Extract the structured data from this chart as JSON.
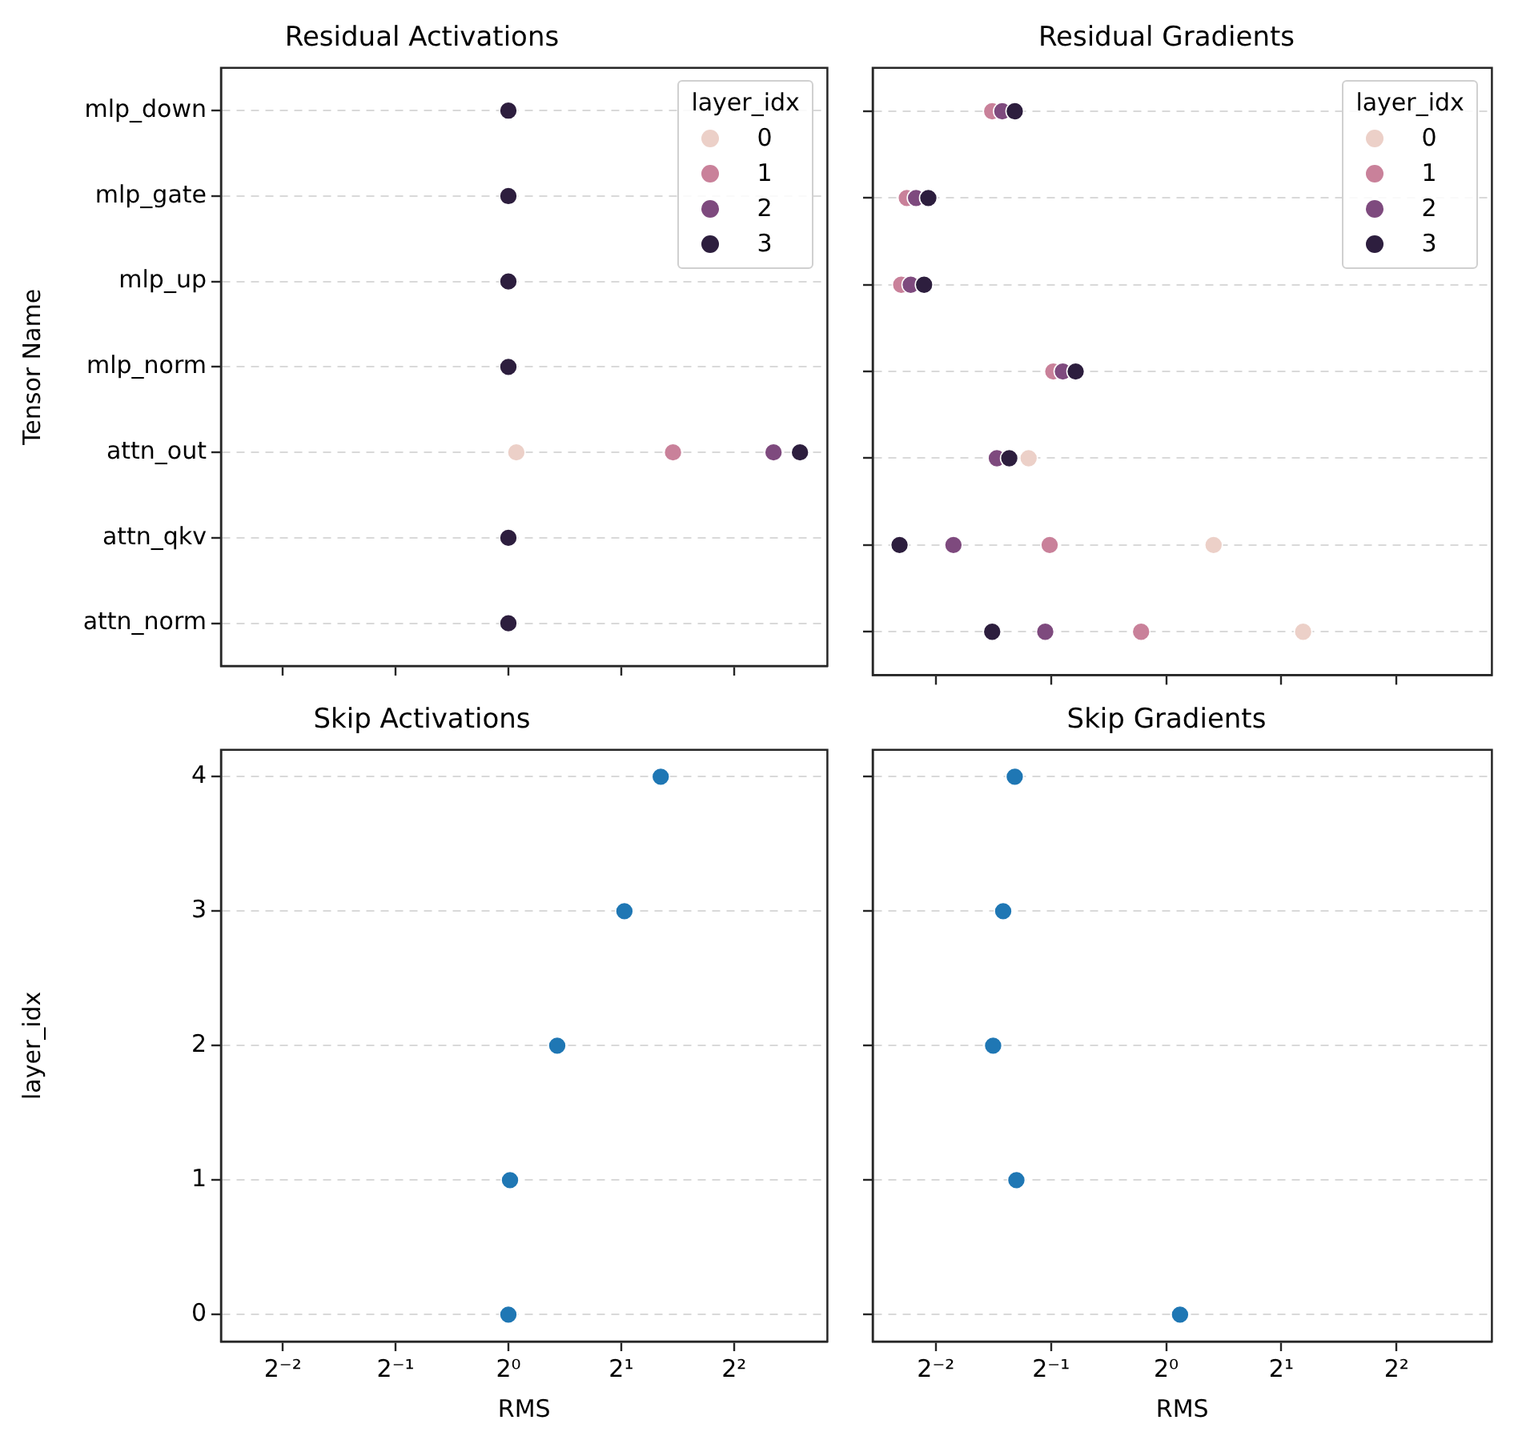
{
  "chart_data": [
    {
      "type": "scatter",
      "title": "Residual Activations",
      "ylabel": "Tensor Name",
      "orientation": "horizontal",
      "categories": [
        "mlp_down",
        "mlp_gate",
        "mlp_up",
        "mlp_norm",
        "attn_out",
        "attn_qkv",
        "attn_norm"
      ],
      "series": [
        {
          "name": "0",
          "color": "#ecd0c8",
          "values": [
            null,
            null,
            null,
            null,
            1.05,
            null,
            null
          ]
        },
        {
          "name": "1",
          "color": "#c9819a",
          "values": [
            null,
            null,
            null,
            null,
            2.75,
            null,
            null
          ]
        },
        {
          "name": "2",
          "color": "#7e4a7e",
          "values": [
            null,
            null,
            null,
            null,
            5.1,
            null,
            null
          ]
        },
        {
          "name": "3",
          "color": "#2d1e3e",
          "values": [
            1.0,
            1.0,
            1.0,
            1.0,
            6.0,
            1.0,
            1.0
          ]
        }
      ],
      "xlim": [
        0.171,
        7.1
      ],
      "xticks": [
        {
          "value": 0.25,
          "label": null
        },
        {
          "value": 0.5,
          "label": null
        },
        {
          "value": 1,
          "label": null
        },
        {
          "value": 2,
          "label": null
        },
        {
          "value": 4,
          "label": null
        }
      ],
      "log": "x",
      "grid": "y",
      "legend": "top right",
      "legend_title": "layer_idx",
      "marker": "circle",
      "tick_labels": "y"
    },
    {
      "type": "scatter",
      "title": "Residual Gradients",
      "orientation": "horizontal",
      "categories": [
        null,
        null,
        null,
        null,
        null,
        null,
        null
      ],
      "series": [
        {
          "name": "0",
          "color": "#ecd0c8",
          "values": [
            null,
            null,
            null,
            null,
            0.437,
            1.33,
            2.28
          ]
        },
        {
          "name": "1",
          "color": "#c9819a",
          "values": [
            0.351,
            0.21,
            0.203,
            0.507,
            null,
            0.496,
            0.86
          ]
        },
        {
          "name": "2",
          "color": "#7e4a7e",
          "values": [
            0.373,
            0.222,
            0.215,
            0.537,
            0.361,
            0.278,
            0.483
          ]
        },
        {
          "name": "3",
          "color": "#2d1e3e",
          "values": [
            0.402,
            0.239,
            0.233,
            0.58,
            0.389,
            0.201,
            0.351
          ]
        }
      ],
      "xlim": [
        0.171,
        7.1
      ],
      "xticks": [
        {
          "value": 0.25,
          "label": null
        },
        {
          "value": 0.5,
          "label": null
        },
        {
          "value": 1,
          "label": null
        },
        {
          "value": 2,
          "label": null
        },
        {
          "value": 4,
          "label": null
        }
      ],
      "log": "x",
      "grid": "y",
      "legend": "top right",
      "legend_title": "layer_idx",
      "marker": "circle",
      "tick_labels": false
    },
    {
      "type": "scatter",
      "title": "Skip Activations",
      "xlabel": "RMS",
      "ylabel": "layer_idx",
      "x": [
        1.0,
        1.01,
        1.35,
        2.04,
        2.55
      ],
      "values": [
        0,
        1,
        2,
        3,
        4
      ],
      "color": "#1f77b4",
      "xlim": [
        0.171,
        7.1
      ],
      "xticks": [
        {
          "value": 0.25,
          "label": "2⁻²"
        },
        {
          "value": 0.5,
          "label": "2⁻¹"
        },
        {
          "value": 1,
          "label": "2⁰"
        },
        {
          "value": 2,
          "label": "2¹"
        },
        {
          "value": 4,
          "label": "2²"
        }
      ],
      "ylim": [
        -0.2,
        4.2
      ],
      "yticks": [
        0,
        1,
        2,
        3,
        4
      ],
      "log": "x",
      "grid": "y",
      "marker": "circle"
    },
    {
      "type": "scatter",
      "title": "Skip Gradients",
      "xlabel": "RMS",
      "x": [
        1.087,
        0.406,
        0.353,
        0.375,
        0.402
      ],
      "values": [
        0,
        1,
        2,
        3,
        4
      ],
      "color": "#1f77b4",
      "xlim": [
        0.171,
        7.1
      ],
      "xticks": [
        {
          "value": 0.25,
          "label": "2⁻²"
        },
        {
          "value": 0.5,
          "label": "2⁻¹"
        },
        {
          "value": 1,
          "label": "2⁰"
        },
        {
          "value": 2,
          "label": "2¹"
        },
        {
          "value": 4,
          "label": "2²"
        }
      ],
      "ylim": [
        -0.2,
        4.2
      ],
      "yticks": [
        0,
        1,
        2,
        3,
        4
      ],
      "log": "x",
      "grid": "y",
      "marker": "circle",
      "tick_labels": "x"
    }
  ]
}
